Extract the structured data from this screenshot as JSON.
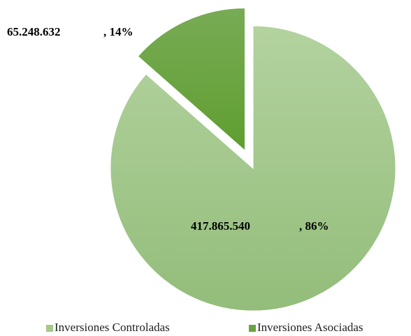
{
  "chart_data": {
    "type": "pie",
    "categories": [
      "Inversiones Controladas",
      "Inversiones Asociadas"
    ],
    "values": [
      417865540,
      65248632
    ],
    "value_labels": [
      "417.865.540",
      "65.248.632"
    ],
    "percents": [
      86,
      14
    ],
    "percent_labels": [
      ", 86%",
      ", 14%"
    ],
    "colors": [
      "#a3c98b",
      "#6aa43e"
    ],
    "legend": "bottom"
  }
}
